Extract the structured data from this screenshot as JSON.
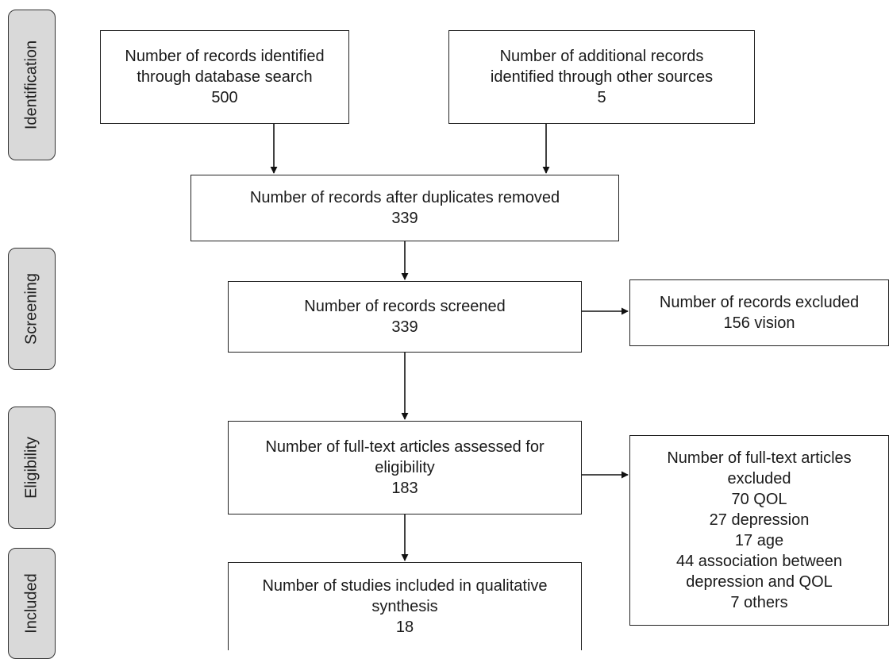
{
  "phases": {
    "identification": "Identification",
    "screening": "Screening",
    "eligibility": "Eligibility",
    "included": "Included"
  },
  "boxes": {
    "database_search": {
      "lines": [
        "Number of records identified",
        "through database search"
      ],
      "count": "500"
    },
    "other_sources": {
      "lines": [
        "Number of additional records",
        "identified through other sources"
      ],
      "count": "5"
    },
    "duplicates_removed": {
      "lines": [
        "Number of records after duplicates removed"
      ],
      "count": "339"
    },
    "screened": {
      "lines": [
        "Number of records screened"
      ],
      "count": "339"
    },
    "records_excluded": {
      "lines": [
        "Number of records excluded",
        "156 vision"
      ]
    },
    "full_text_assessed": {
      "lines": [
        "Number of full-text articles assessed for",
        "eligibility"
      ],
      "count": "183"
    },
    "full_text_excluded": {
      "lines": [
        "Number of full-text articles",
        "excluded",
        "70 QOL",
        "27 depression",
        "17 age",
        "44 association between",
        "depression and QOL",
        "7 others"
      ]
    },
    "studies_included": {
      "lines": [
        "Number of studies included in qualitative",
        "synthesis"
      ],
      "count": "18"
    }
  }
}
